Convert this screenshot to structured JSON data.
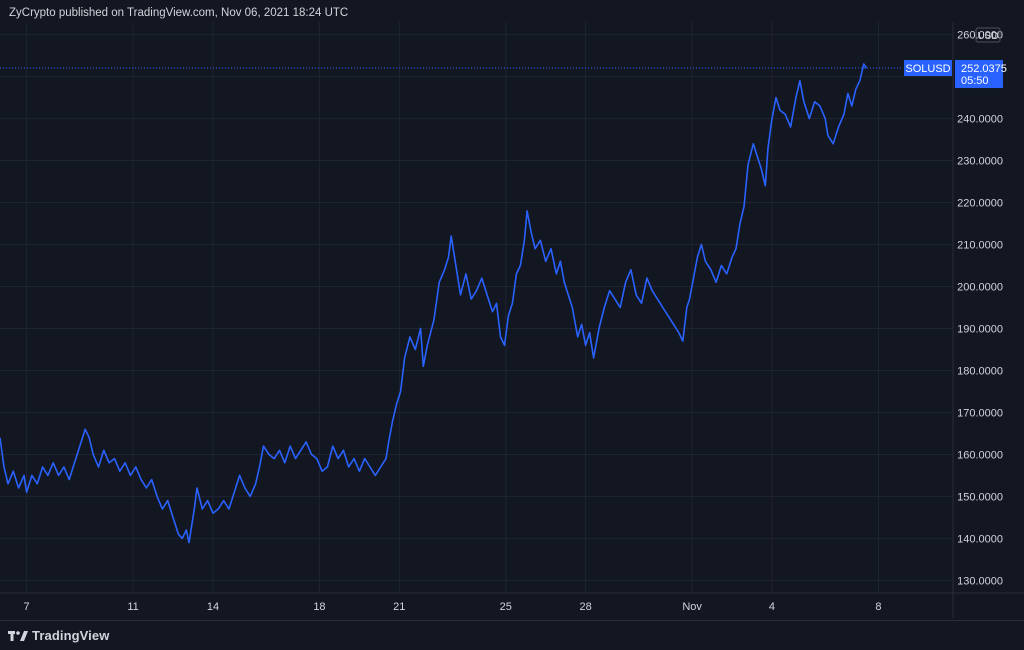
{
  "header": {
    "attribution": "ZyCrypto published on TradingView.com, Nov 06, 2021 18:24 UTC"
  },
  "footer": {
    "brand": "TradingView"
  },
  "colors": {
    "background": "#131722",
    "grid": "#1f2433",
    "line": "#2962ff",
    "axis_text": "#d1d4dc",
    "label_bg": "#2962ff"
  },
  "chart_data": {
    "type": "line",
    "symbol": "SOLUSD",
    "currency": "USD",
    "last_price": "252.0375",
    "countdown": "05:50",
    "y_ticks": [
      "260.0000",
      "250.0000",
      "240.0000",
      "230.0000",
      "220.0000",
      "210.0000",
      "200.0000",
      "190.0000",
      "180.0000",
      "170.0000",
      "160.0000",
      "150.0000",
      "140.0000",
      "130.0000"
    ],
    "ylim": [
      127,
      263
    ],
    "x_ticks": [
      {
        "label": "7",
        "day": 7
      },
      {
        "label": "11",
        "day": 11
      },
      {
        "label": "14",
        "day": 14
      },
      {
        "label": "18",
        "day": 18
      },
      {
        "label": "21",
        "day": 21
      },
      {
        "label": "25",
        "day": 25
      },
      {
        "label": "28",
        "day": 28
      },
      {
        "label": "Nov",
        "day": 32
      },
      {
        "label": "4",
        "day": 35
      },
      {
        "label": "8",
        "day": 39
      }
    ],
    "x_unit": "day of Oct 2021 (Nov dates continue past 31)",
    "xlim": [
      6.0,
      41.8
    ],
    "series": [
      {
        "points": [
          [
            6.0,
            164
          ],
          [
            6.15,
            157
          ],
          [
            6.3,
            153
          ],
          [
            6.5,
            156
          ],
          [
            6.7,
            152
          ],
          [
            6.9,
            155
          ],
          [
            7.0,
            151
          ],
          [
            7.2,
            155
          ],
          [
            7.4,
            153
          ],
          [
            7.6,
            157
          ],
          [
            7.8,
            155
          ],
          [
            8.0,
            158
          ],
          [
            8.2,
            155
          ],
          [
            8.4,
            157
          ],
          [
            8.6,
            154
          ],
          [
            8.8,
            158
          ],
          [
            8.95,
            161
          ],
          [
            9.1,
            164
          ],
          [
            9.2,
            166
          ],
          [
            9.35,
            164
          ],
          [
            9.5,
            160
          ],
          [
            9.7,
            157
          ],
          [
            9.9,
            161
          ],
          [
            10.1,
            158
          ],
          [
            10.3,
            159
          ],
          [
            10.5,
            156
          ],
          [
            10.7,
            158
          ],
          [
            10.9,
            155
          ],
          [
            11.1,
            157
          ],
          [
            11.3,
            154
          ],
          [
            11.5,
            152
          ],
          [
            11.7,
            154
          ],
          [
            11.9,
            150
          ],
          [
            12.1,
            147
          ],
          [
            12.3,
            149
          ],
          [
            12.5,
            145
          ],
          [
            12.7,
            141
          ],
          [
            12.85,
            140
          ],
          [
            13.0,
            142
          ],
          [
            13.1,
            139
          ],
          [
            13.3,
            147
          ],
          [
            13.4,
            152
          ],
          [
            13.6,
            147
          ],
          [
            13.8,
            149
          ],
          [
            14.0,
            146
          ],
          [
            14.2,
            147
          ],
          [
            14.4,
            149
          ],
          [
            14.6,
            147
          ],
          [
            14.8,
            151
          ],
          [
            15.0,
            155
          ],
          [
            15.2,
            152
          ],
          [
            15.4,
            150
          ],
          [
            15.6,
            153
          ],
          [
            15.75,
            157
          ],
          [
            15.9,
            162
          ],
          [
            16.1,
            160
          ],
          [
            16.3,
            159
          ],
          [
            16.5,
            161
          ],
          [
            16.7,
            158
          ],
          [
            16.9,
            162
          ],
          [
            17.1,
            159
          ],
          [
            17.3,
            161
          ],
          [
            17.5,
            163
          ],
          [
            17.7,
            160
          ],
          [
            17.9,
            159
          ],
          [
            18.1,
            156
          ],
          [
            18.3,
            157
          ],
          [
            18.5,
            162
          ],
          [
            18.7,
            159
          ],
          [
            18.9,
            161
          ],
          [
            19.1,
            157
          ],
          [
            19.3,
            159
          ],
          [
            19.5,
            156
          ],
          [
            19.7,
            159
          ],
          [
            19.9,
            157
          ],
          [
            20.1,
            155
          ],
          [
            20.3,
            157
          ],
          [
            20.5,
            159
          ],
          [
            20.6,
            163
          ],
          [
            20.75,
            168
          ],
          [
            20.9,
            172
          ],
          [
            21.05,
            175
          ],
          [
            21.2,
            183
          ],
          [
            21.4,
            188
          ],
          [
            21.6,
            185
          ],
          [
            21.8,
            190
          ],
          [
            21.9,
            181
          ],
          [
            22.05,
            186
          ],
          [
            22.3,
            192
          ],
          [
            22.5,
            201
          ],
          [
            22.7,
            204
          ],
          [
            22.85,
            207
          ],
          [
            22.95,
            212
          ],
          [
            23.1,
            206
          ],
          [
            23.3,
            198
          ],
          [
            23.5,
            203
          ],
          [
            23.7,
            197
          ],
          [
            23.9,
            199
          ],
          [
            24.1,
            202
          ],
          [
            24.3,
            198
          ],
          [
            24.5,
            194
          ],
          [
            24.65,
            196
          ],
          [
            24.8,
            188
          ],
          [
            24.95,
            186
          ],
          [
            25.1,
            193
          ],
          [
            25.25,
            196
          ],
          [
            25.4,
            203
          ],
          [
            25.55,
            205
          ],
          [
            25.7,
            211
          ],
          [
            25.8,
            218
          ],
          [
            25.95,
            213
          ],
          [
            26.1,
            209
          ],
          [
            26.3,
            211
          ],
          [
            26.5,
            206
          ],
          [
            26.7,
            209
          ],
          [
            26.9,
            203
          ],
          [
            27.05,
            206
          ],
          [
            27.2,
            201
          ],
          [
            27.35,
            198
          ],
          [
            27.5,
            195
          ],
          [
            27.7,
            188
          ],
          [
            27.85,
            191
          ],
          [
            28.0,
            186
          ],
          [
            28.15,
            189
          ],
          [
            28.3,
            183
          ],
          [
            28.5,
            190
          ],
          [
            28.7,
            195
          ],
          [
            28.9,
            199
          ],
          [
            29.1,
            197
          ],
          [
            29.3,
            195
          ],
          [
            29.5,
            201
          ],
          [
            29.7,
            204
          ],
          [
            29.9,
            198
          ],
          [
            30.1,
            196
          ],
          [
            30.3,
            202
          ],
          [
            30.5,
            199
          ],
          [
            30.7,
            197
          ],
          [
            30.9,
            195
          ],
          [
            31.1,
            193
          ],
          [
            31.3,
            191
          ],
          [
            31.5,
            189
          ],
          [
            31.65,
            187
          ],
          [
            31.8,
            195
          ],
          [
            31.9,
            197
          ],
          [
            32.05,
            202
          ],
          [
            32.2,
            207
          ],
          [
            32.35,
            210
          ],
          [
            32.5,
            206
          ],
          [
            32.7,
            204
          ],
          [
            32.9,
            201
          ],
          [
            33.1,
            205
          ],
          [
            33.3,
            203
          ],
          [
            33.5,
            207
          ],
          [
            33.65,
            209
          ],
          [
            33.8,
            215
          ],
          [
            33.95,
            219
          ],
          [
            34.1,
            229
          ],
          [
            34.3,
            234
          ],
          [
            34.45,
            231
          ],
          [
            34.6,
            228
          ],
          [
            34.75,
            224
          ],
          [
            34.85,
            233
          ],
          [
            35.0,
            240
          ],
          [
            35.15,
            245
          ],
          [
            35.3,
            242
          ],
          [
            35.5,
            241
          ],
          [
            35.7,
            238
          ],
          [
            35.9,
            245
          ],
          [
            36.05,
            249
          ],
          [
            36.2,
            244
          ],
          [
            36.4,
            240
          ],
          [
            36.6,
            244
          ],
          [
            36.8,
            243
          ],
          [
            37.0,
            240
          ],
          [
            37.1,
            236
          ],
          [
            37.3,
            234
          ],
          [
            37.5,
            238
          ],
          [
            37.7,
            241
          ],
          [
            37.85,
            246
          ],
          [
            38.0,
            243
          ],
          [
            38.15,
            247
          ],
          [
            38.3,
            249
          ],
          [
            38.45,
            253
          ],
          [
            38.55,
            252
          ]
        ]
      }
    ]
  }
}
